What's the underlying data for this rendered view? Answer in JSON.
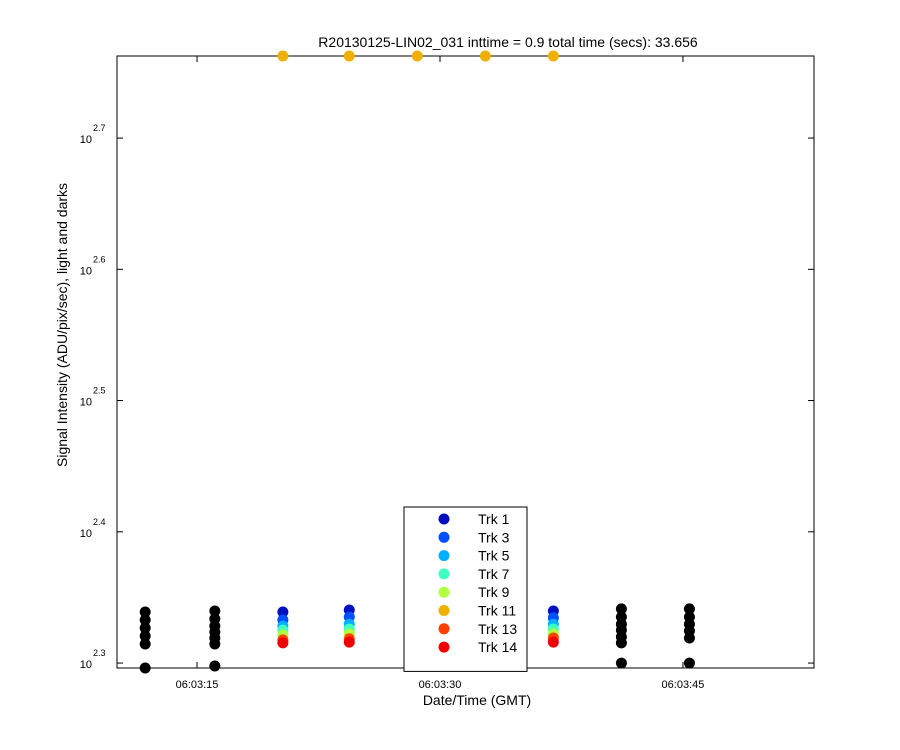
{
  "chart_data": {
    "type": "scatter",
    "title": "R20130125-LIN02_031 inttime = 0.9 total time (secs): 33.656",
    "x_label": "Date/Time (GMT)",
    "y_label": "Signal Intensity (ADU/pix/sec), light and darks",
    "yscale": "log",
    "xlim": [
      10.06,
      53.09
    ],
    "ylim": [
      197.8,
      578.8
    ],
    "xticks": [
      {
        "value": 15,
        "label": "06:03:15"
      },
      {
        "value": 30,
        "label": "06:03:30"
      },
      {
        "value": 45,
        "label": "06:03:45"
      }
    ],
    "yticks": [
      {
        "value": 199.526,
        "label": "10",
        "exponent": "2.3"
      },
      {
        "value": 251.189,
        "label": "10",
        "exponent": "2.4"
      },
      {
        "value": 316.228,
        "label": "10",
        "exponent": "2.5"
      },
      {
        "value": 398.107,
        "label": "10",
        "exponent": "2.6"
      },
      {
        "value": 501.187,
        "label": "10",
        "exponent": "2.7"
      }
    ],
    "legend_position": "bottom",
    "series": [
      {
        "name": "Trk 1",
        "color": "#0010c0",
        "x": [
          20.3,
          24.4,
          37.0
        ],
        "values": [
          218.2,
          219.0,
          218.6
        ]
      },
      {
        "name": "Trk 3",
        "color": "#0050ff",
        "x": [
          20.3,
          24.4,
          37.0
        ],
        "values": [
          215.2,
          216.3,
          216.0
        ]
      },
      {
        "name": "Trk 5",
        "color": "#00b0ff",
        "x": [
          20.3,
          24.4,
          37.0
        ],
        "values": [
          212.9,
          213.6,
          213.6
        ]
      },
      {
        "name": "Trk 7",
        "color": "#40ffc0",
        "x": [
          20.3,
          24.4,
          37.0
        ],
        "values": [
          211.4,
          211.8,
          211.8
        ]
      },
      {
        "name": "Trk 9",
        "color": "#b0ff40",
        "x": [
          20.3,
          24.4,
          37.0
        ],
        "values": [
          209.6,
          210.0,
          210.0
        ]
      },
      {
        "name": "Trk 11",
        "color": "#f0b000",
        "x": [
          20.3,
          24.4,
          28.6,
          32.8,
          37.0
        ],
        "values": [
          578.8,
          578.8,
          578.8,
          578.8,
          578.8
        ]
      },
      {
        "name": "Trk 13",
        "color": "#ff4000",
        "x": [
          20.3,
          24.4,
          37.0
        ],
        "values": [
          207.8,
          208.2,
          208.5
        ]
      },
      {
        "name": "Trk 14",
        "color": "#f00000",
        "x": [
          20.3,
          24.4,
          37.0
        ],
        "values": [
          206.7,
          207.0,
          207.0
        ]
      }
    ],
    "darks": {
      "color": "#000000",
      "x": [
        11.8,
        11.8,
        11.8,
        11.8,
        11.8,
        11.8,
        16.1,
        16.1,
        16.1,
        16.1,
        16.1,
        16.1,
        16.1,
        41.2,
        41.2,
        41.2,
        41.2,
        41.2,
        41.2,
        41.2,
        45.4,
        45.4,
        45.4,
        45.4,
        45.4,
        45.4
      ],
      "values": [
        218.2,
        215.2,
        212.2,
        209.2,
        206.3,
        197.8,
        218.6,
        215.6,
        212.9,
        210.7,
        208.5,
        206.3,
        198.5,
        219.4,
        216.3,
        213.6,
        211.4,
        208.9,
        206.7,
        199.5,
        219.4,
        216.3,
        213.6,
        211.1,
        208.5,
        199.5
      ]
    }
  }
}
